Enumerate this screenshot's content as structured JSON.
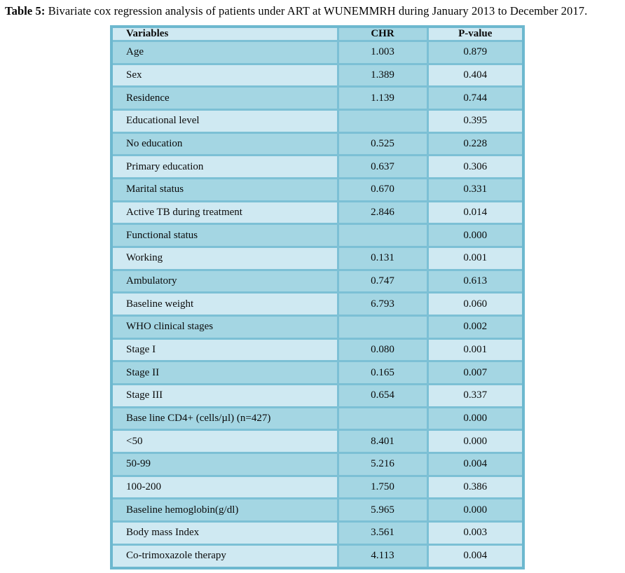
{
  "page": {
    "caption_label": "Table 5:",
    "caption_text": " Bivariate cox regression analysis of patients under ART at WUNEMMRH during January 2013 to December 2017."
  },
  "table": {
    "header": [
      {
        "label": "Variables",
        "tone": "light"
      },
      {
        "label": "CHR",
        "tone": "dark"
      },
      {
        "label": "P-value",
        "tone": "light"
      }
    ],
    "rows": [
      {
        "variable": "Age",
        "chr": "1.003",
        "p": "0.879",
        "tone": "dark"
      },
      {
        "variable": "Sex",
        "chr": "1.389",
        "p": "0.404",
        "tone": "light"
      },
      {
        "variable": "Residence",
        "chr": "1.139",
        "p": "0.744",
        "tone": "dark"
      },
      {
        "variable": "Educational level",
        "chr": "",
        "p": "0.395",
        "tone": "light"
      },
      {
        "variable": "No education",
        "chr": "0.525",
        "p": "0.228",
        "tone": "dark"
      },
      {
        "variable": "Primary education",
        "chr": "0.637",
        "p": "0.306",
        "tone": "light"
      },
      {
        "variable": "Marital status",
        "chr": "0.670",
        "p": "0.331",
        "tone": "dark"
      },
      {
        "variable": "Active TB during treatment",
        "chr": "2.846",
        "p": "0.014",
        "tone": "light"
      },
      {
        "variable": "Functional status",
        "chr": "",
        "p": "0.000",
        "tone": "dark"
      },
      {
        "variable": "Working",
        "chr": "0.131",
        "p": "0.001",
        "tone": "light"
      },
      {
        "variable": "Ambulatory",
        "chr": "0.747",
        "p": "0.613",
        "tone": "dark"
      },
      {
        "variable": "Baseline weight",
        "chr": "6.793",
        "p": "0.060",
        "tone": "light"
      },
      {
        "variable": "WHO clinical stages",
        "chr": "",
        "p": "0.002",
        "tone": "dark"
      },
      {
        "variable": "Stage I",
        "chr": "0.080",
        "p": "0.001",
        "tone": "light"
      },
      {
        "variable": "Stage II",
        "chr": "0.165",
        "p": "0.007",
        "tone": "dark"
      },
      {
        "variable": "Stage III",
        "chr": "0.654",
        "p": "0.337",
        "tone": "light"
      },
      {
        "variable": "Base line CD4+ (cells/µl) (n=427)",
        "chr": "",
        "p": "0.000",
        "tone": "dark"
      },
      {
        "variable": "<50",
        "chr": "8.401",
        "p": "0.000",
        "tone": "light"
      },
      {
        "variable": "50-99",
        "chr": "5.216",
        "p": "0.004",
        "tone": "dark"
      },
      {
        "variable": "100-200",
        "chr": "1.750",
        "p": "0.386",
        "tone": "light"
      },
      {
        "variable": "Baseline hemoglobin(g/dl)",
        "chr": "5.965",
        "p": "0.000",
        "tone": "dark"
      },
      {
        "variable": "Body mass Index",
        "chr": "3.561",
        "p": "0.003",
        "tone": "light"
      },
      {
        "variable": "Co-trimoxazole therapy",
        "chr": "4.113",
        "p": "0.004",
        "tone": "light"
      }
    ],
    "colors": {
      "row_light": "#cfe9f2",
      "row_dark": "#a4d6e3",
      "grid_border": "#7cc0d5",
      "outer_border": "#6db8cf",
      "text": "#0b0b0b"
    }
  }
}
